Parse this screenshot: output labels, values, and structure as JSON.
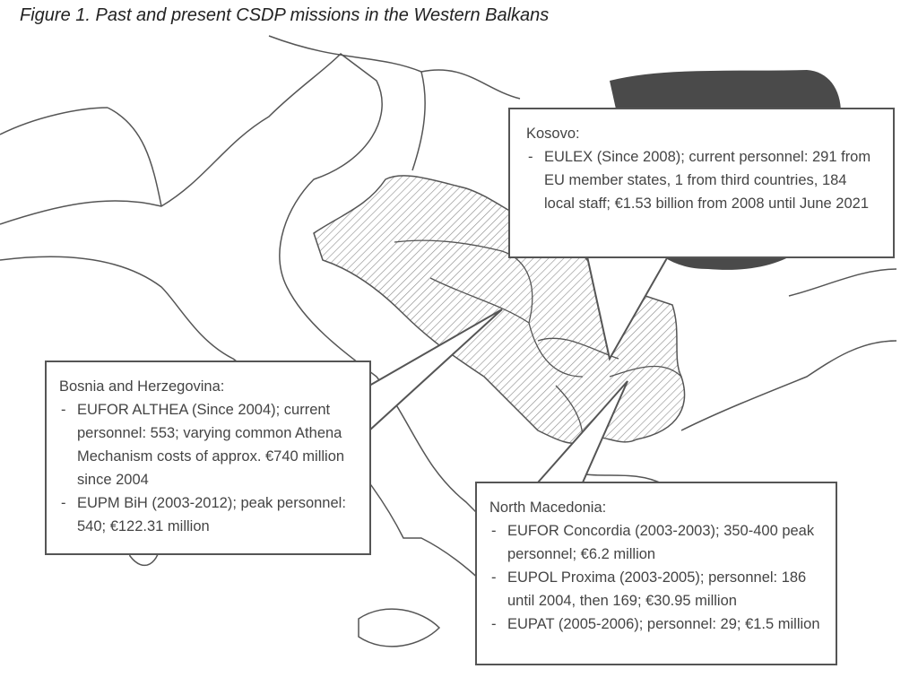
{
  "figure": {
    "title": "Figure 1. Past and present CSDP missions in the Western Balkans"
  },
  "colors": {
    "hatch": "#8a8a8a",
    "dark_region": "#4a4a4a",
    "outline": "#555555"
  },
  "callouts": {
    "kosovo": {
      "heading": "Kosovo:",
      "items": [
        "EULEX (Since 2008); current personnel: 291 from EU member states, 1 from third countries, 184 local staff; €1.53 billion from 2008 until June 2021"
      ]
    },
    "bosnia": {
      "heading": "Bosnia and Herzegovina:",
      "items": [
        "EUFOR ALTHEA (Since 2004); current personnel: 553; varying common Athena Mechanism costs of approx. €740 million since 2004",
        "EUPM BiH (2003-2012); peak personnel: 540; €122.31 million"
      ]
    },
    "macedonia": {
      "heading": "North Macedonia:",
      "items": [
        "EUFOR Concordia (2003-2003); 350-400 peak personnel; €6.2 million",
        "EUPOL Proxima (2003-2005); personnel: 186 until 2004, then 169; €30.95 million",
        "EUPAT (2005-2006); personnel: 29; €1.5 million"
      ]
    }
  }
}
